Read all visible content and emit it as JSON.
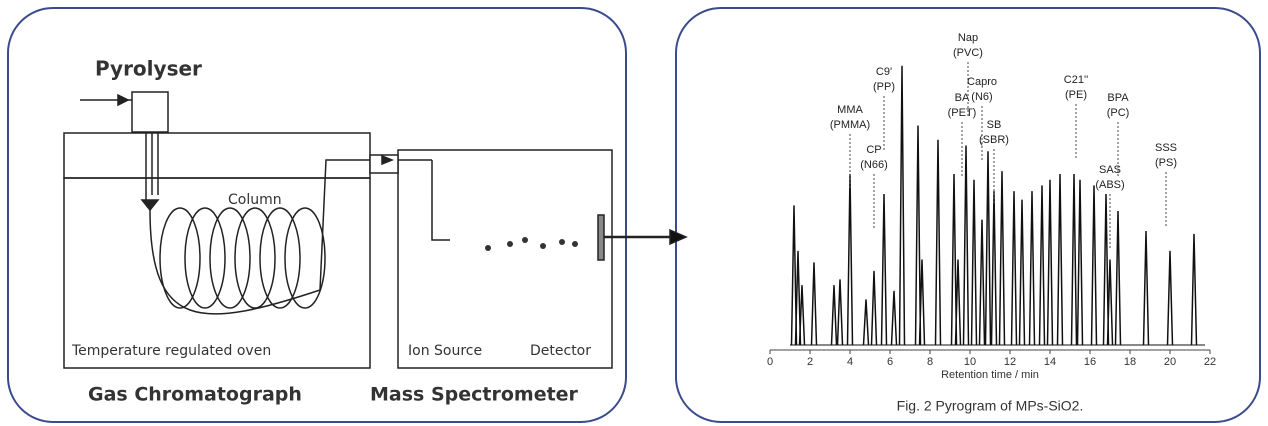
{
  "diagram": {
    "pyrolyser": "Pyrolyser",
    "column": "Column",
    "oven": "Temperature regulated oven",
    "ion_source": "Ion Source",
    "detector": "Detector",
    "gc": "Gas Chromatograph",
    "ms": "Mass Spectrometer"
  },
  "chart_data": {
    "type": "peaks",
    "xlabel": "Retention time / min",
    "caption": "Fig. 2 Pyrogram of MPs-SiO2.",
    "xlim": [
      0,
      22
    ],
    "xticks": [
      0,
      2,
      4,
      6,
      8,
      10,
      12,
      14,
      16,
      18,
      20,
      22
    ],
    "ylim": [
      0,
      100
    ],
    "color": "#111111",
    "x": [
      1.2,
      1.4,
      1.6,
      2.2,
      3.2,
      3.5,
      4.0,
      4.8,
      5.2,
      5.7,
      6.2,
      6.6,
      7.4,
      7.6,
      8.4,
      9.2,
      9.4,
      9.8,
      10.2,
      10.6,
      10.9,
      11.2,
      11.6,
      12.2,
      12.6,
      13.1,
      13.6,
      14.0,
      14.5,
      15.2,
      15.5,
      16.2,
      16.8,
      17.0,
      17.4,
      18.8,
      20.0,
      21.2
    ],
    "values": [
      49,
      33,
      21,
      29,
      21,
      23,
      60,
      16,
      26,
      53,
      19,
      98,
      77,
      30,
      72,
      60,
      30,
      70,
      58,
      44,
      68,
      54,
      61,
      54,
      51,
      54,
      56,
      58,
      60,
      60,
      58,
      56,
      53,
      30,
      47,
      40,
      33,
      39
    ],
    "annotations": [
      {
        "x": 4.0,
        "text": [
          "MMA",
          "(PMMA)"
        ]
      },
      {
        "x": 5.2,
        "text": [
          "CP",
          "(N66)"
        ]
      },
      {
        "x": 5.7,
        "text": [
          "C9'",
          "(PP)"
        ]
      },
      {
        "x": 9.6,
        "text": [
          "BA",
          "(PET)"
        ]
      },
      {
        "x": 9.9,
        "text": [
          "Nap",
          "(PVC)"
        ]
      },
      {
        "x": 10.6,
        "text": [
          "Capro",
          "(N6)"
        ]
      },
      {
        "x": 11.2,
        "text": [
          "SB",
          "(SBR)"
        ]
      },
      {
        "x": 15.3,
        "text": [
          "C21''",
          "(PE)"
        ]
      },
      {
        "x": 17.0,
        "text": [
          "SAS",
          "(ABS)"
        ]
      },
      {
        "x": 17.4,
        "text": [
          "BPA",
          "(PC)"
        ]
      },
      {
        "x": 19.8,
        "text": [
          "SSS",
          "(PS)"
        ]
      }
    ]
  }
}
